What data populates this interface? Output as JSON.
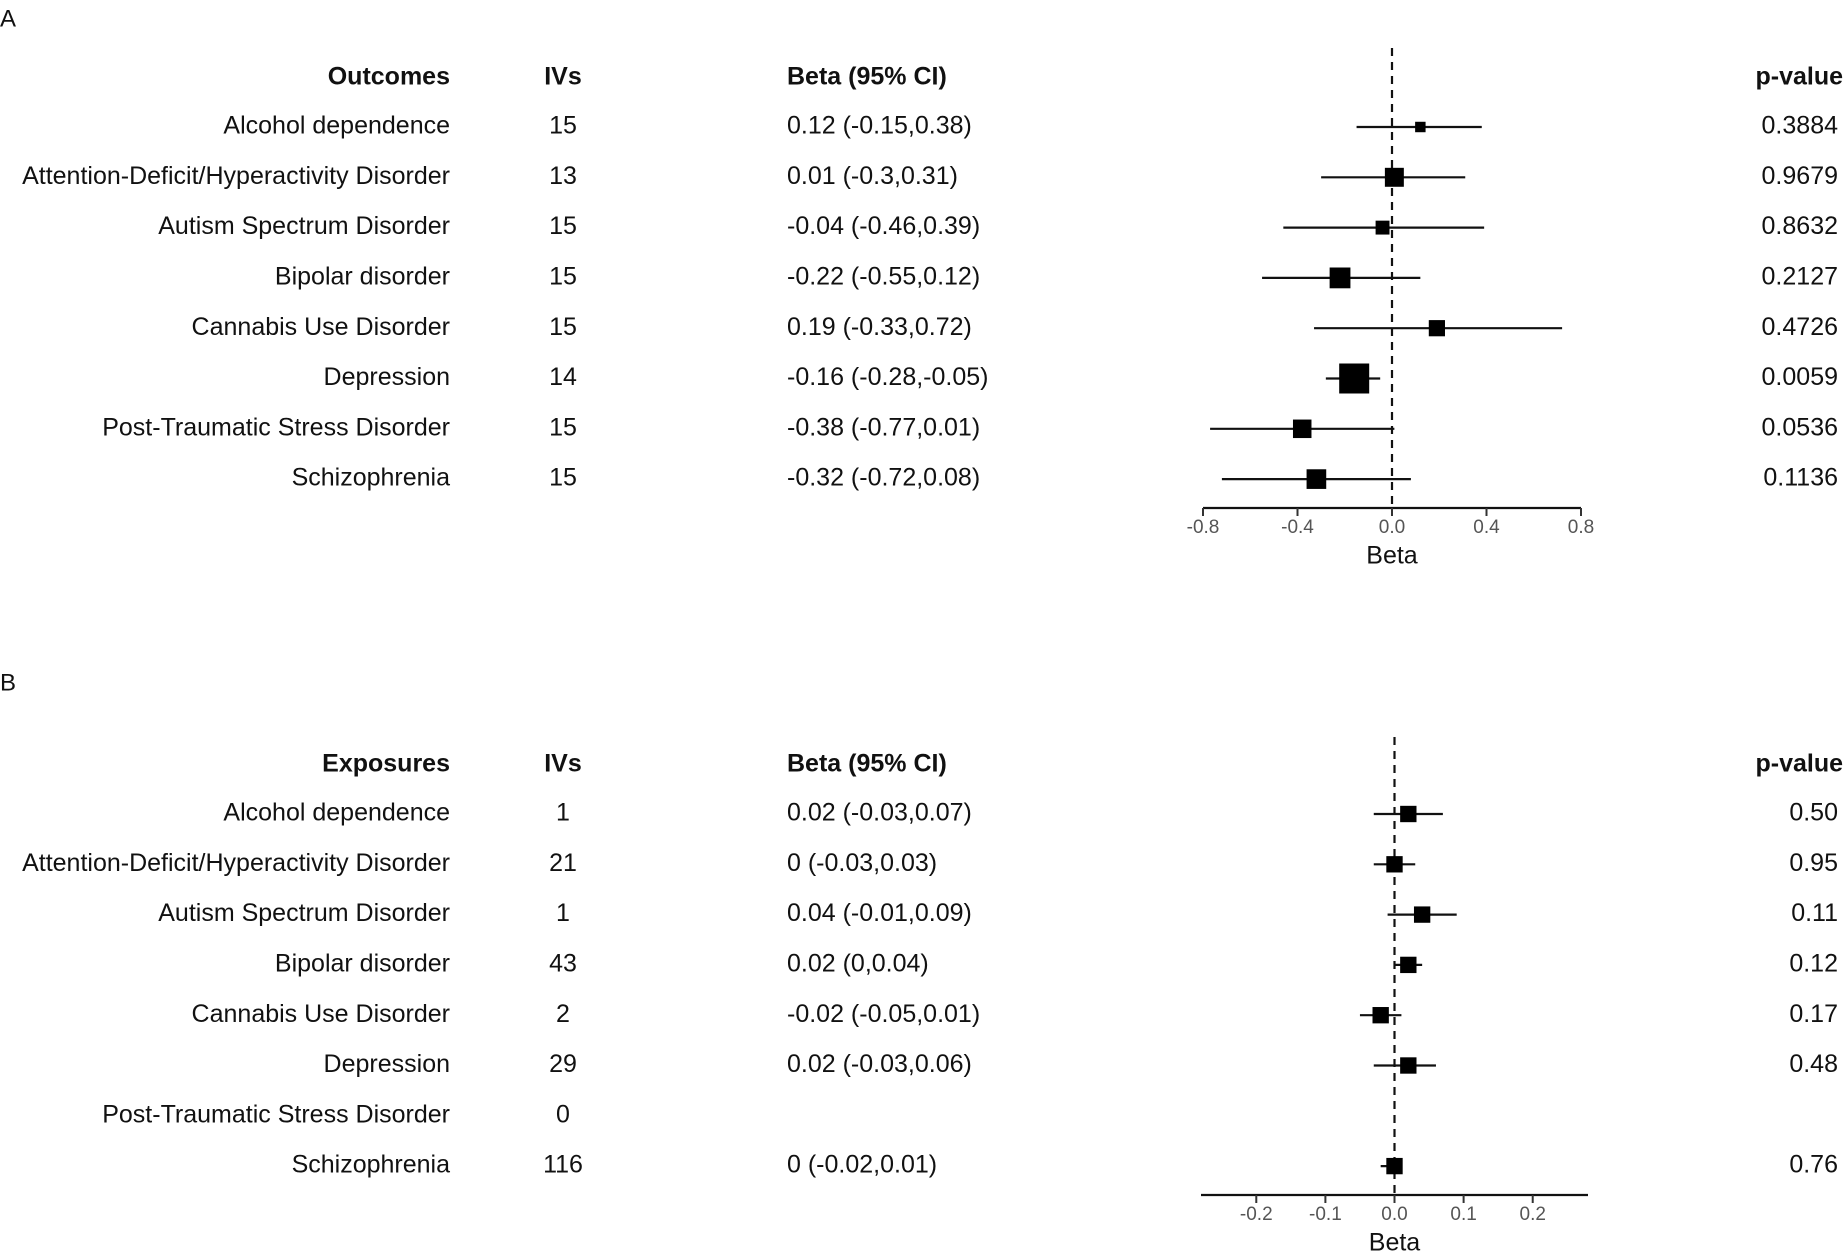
{
  "chart_data": [
    {
      "type": "forest",
      "panel": "A",
      "headers": {
        "name": "Outcomes",
        "ivs": "IVs",
        "beta": "Beta (95% CI)",
        "p": "p-value"
      },
      "xlabel": "Beta",
      "xlim": [
        -0.8,
        0.8
      ],
      "xticks": [
        -0.8,
        -0.4,
        0.0,
        0.4,
        0.8
      ],
      "xtick_labels": [
        "-0.8",
        "-0.4",
        "0.0",
        "0.4",
        "0.8"
      ],
      "reference_line": 0,
      "rows": [
        {
          "name": "Alcohol dependence",
          "ivs": "15",
          "beta_text": "0.12 (-0.15,0.38)",
          "p": "0.3884",
          "beta": 0.12,
          "lo": -0.15,
          "hi": 0.38,
          "weight": 0.15
        },
        {
          "name": "Attention-Deficit/Hyperactivity Disorder",
          "ivs": "13",
          "beta_text": "0.01 (-0.3,0.31)",
          "p": "0.9679",
          "beta": 0.01,
          "lo": -0.3,
          "hi": 0.31,
          "weight": 0.52
        },
        {
          "name": "Autism Spectrum Disorder",
          "ivs": "15",
          "beta_text": "-0.04 (-0.46,0.39)",
          "p": "0.8632",
          "beta": -0.04,
          "lo": -0.46,
          "hi": 0.39,
          "weight": 0.3
        },
        {
          "name": "Bipolar disorder",
          "ivs": "15",
          "beta_text": "-0.22 (-0.55,0.12)",
          "p": "0.2127",
          "beta": -0.22,
          "lo": -0.55,
          "hi": 0.12,
          "weight": 0.6
        },
        {
          "name": "Cannabis Use Disorder",
          "ivs": "15",
          "beta_text": "0.19 (-0.33,0.72)",
          "p": "0.4726",
          "beta": 0.19,
          "lo": -0.33,
          "hi": 0.72,
          "weight": 0.4
        },
        {
          "name": "Depression",
          "ivs": "14",
          "beta_text": "-0.16 (-0.28,-0.05)",
          "p": "0.0059",
          "beta": -0.16,
          "lo": -0.28,
          "hi": -0.05,
          "weight": 1.0
        },
        {
          "name": "Post-Traumatic Stress Disorder",
          "ivs": "15",
          "beta_text": "-0.38 (-0.77,0.01)",
          "p": "0.0536",
          "beta": -0.38,
          "lo": -0.77,
          "hi": 0.01,
          "weight": 0.5
        },
        {
          "name": "Schizophrenia",
          "ivs": "15",
          "beta_text": "-0.32 (-0.72,0.08)",
          "p": "0.1136",
          "beta": -0.32,
          "lo": -0.72,
          "hi": 0.08,
          "weight": 0.55
        }
      ]
    },
    {
      "type": "forest",
      "panel": "B",
      "headers": {
        "name": "Exposures",
        "ivs": "IVs",
        "beta": "Beta (95% CI)",
        "p": "p-value"
      },
      "xlabel": "Beta",
      "xlim": [
        -0.28,
        0.28
      ],
      "xticks": [
        -0.2,
        -0.1,
        0.0,
        0.1,
        0.2
      ],
      "xtick_labels": [
        "-0.2",
        "-0.1",
        "0.0",
        "0.1",
        "0.2"
      ],
      "reference_line": 0,
      "rows": [
        {
          "name": "Alcohol dependence",
          "ivs": "1",
          "beta_text": "0.02 (-0.03,0.07)",
          "p": "0.50",
          "beta": 0.02,
          "lo": -0.03,
          "hi": 0.07,
          "weight": 0.85
        },
        {
          "name": "Attention-Deficit/Hyperactivity Disorder",
          "ivs": "21",
          "beta_text": "0 (-0.03,0.03)",
          "p": "0.95",
          "beta": 0.0,
          "lo": -0.03,
          "hi": 0.03,
          "weight": 0.85
        },
        {
          "name": "Autism Spectrum Disorder",
          "ivs": "1",
          "beta_text": "0.04 (-0.01,0.09)",
          "p": "0.11",
          "beta": 0.04,
          "lo": -0.01,
          "hi": 0.09,
          "weight": 0.85
        },
        {
          "name": "Bipolar disorder",
          "ivs": "43",
          "beta_text": "0.02 (0,0.04)",
          "p": "0.12",
          "beta": 0.02,
          "lo": 0.0,
          "hi": 0.04,
          "weight": 0.85
        },
        {
          "name": "Cannabis Use Disorder",
          "ivs": "2",
          "beta_text": "-0.02 (-0.05,0.01)",
          "p": "0.17",
          "beta": -0.02,
          "lo": -0.05,
          "hi": 0.01,
          "weight": 0.85
        },
        {
          "name": "Depression",
          "ivs": "29",
          "beta_text": "0.02 (-0.03,0.06)",
          "p": "0.48",
          "beta": 0.02,
          "lo": -0.03,
          "hi": 0.06,
          "weight": 0.85
        },
        {
          "name": "Post-Traumatic Stress Disorder",
          "ivs": "0",
          "beta_text": "",
          "p": "",
          "beta": null,
          "lo": null,
          "hi": null,
          "weight": 0
        },
        {
          "name": "Schizophrenia",
          "ivs": "116",
          "beta_text": "0 (-0.02,0.01)",
          "p": "0.76",
          "beta": 0.0,
          "lo": -0.02,
          "hi": 0.01,
          "weight": 0.85
        }
      ]
    }
  ]
}
